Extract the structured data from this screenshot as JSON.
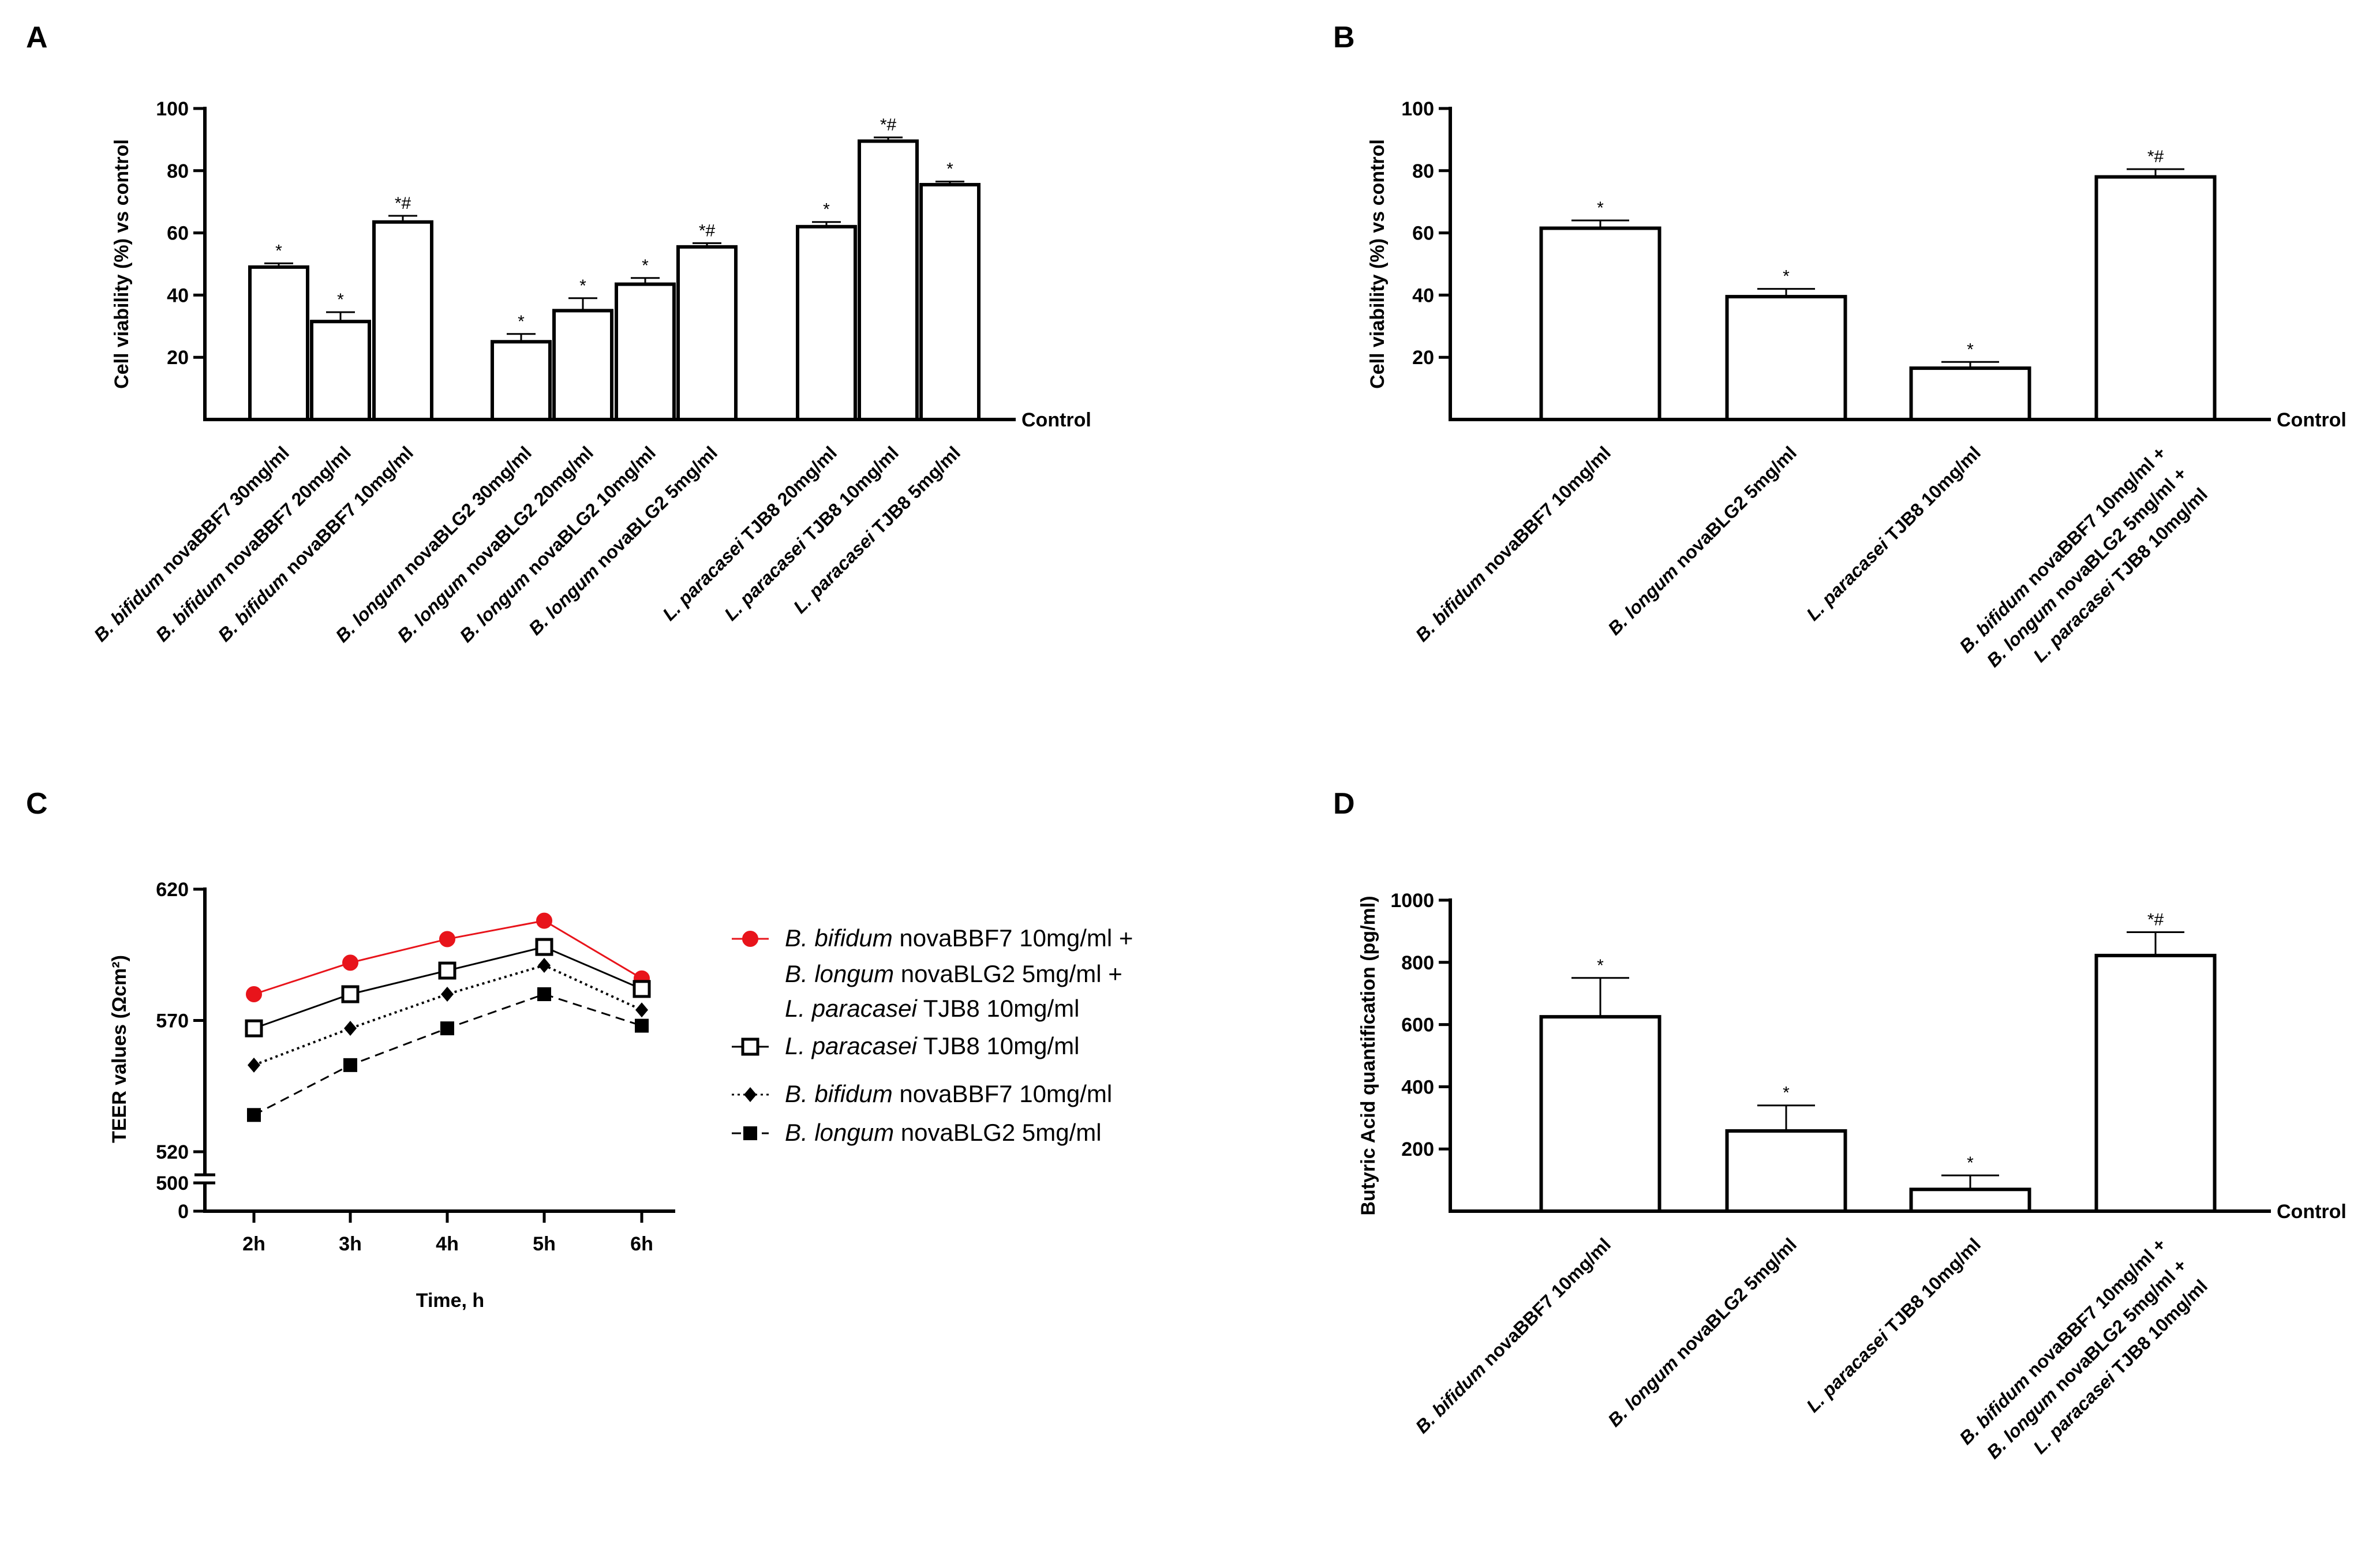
{
  "chart_data": [
    {
      "panel": "A",
      "type": "bar",
      "ylabel": "Cell viability (%) vs control",
      "baseline_label": "Control",
      "ylim": [
        0,
        100
      ],
      "yticks": [
        "20",
        "40",
        "60",
        "80",
        "100"
      ],
      "categories": [
        {
          "italic": "B. bifidum",
          "rest": " novaBBF7 30mg/ml"
        },
        {
          "italic": "B. bifidum",
          "rest": " novaBBF7 20mg/ml"
        },
        {
          "italic": "B. bifidum",
          "rest": " novaBBF7 10mg/ml"
        },
        {
          "italic": "B. longum",
          "rest": " novaBLG2 30mg/ml"
        },
        {
          "italic": "B. longum",
          "rest": " novaBLG2 20mg/ml"
        },
        {
          "italic": "B. longum",
          "rest": " novaBLG2 10mg/ml"
        },
        {
          "italic": "B. longum",
          "rest": " novaBLG2 5mg/ml"
        },
        {
          "italic": "L. paracasei",
          "rest": " TJB8 20mg/ml"
        },
        {
          "italic": "L. paracasei",
          "rest": " TJB8 10mg/ml"
        },
        {
          "italic": "L. paracasei",
          "rest": " TJB8 5mg/ml"
        }
      ],
      "values": [
        49,
        31.5,
        63.5,
        25,
        35,
        43.5,
        55.5,
        62,
        89.5,
        75.5
      ],
      "errors": [
        1.2,
        3,
        2,
        2.5,
        4,
        2,
        1.2,
        1.5,
        1.2,
        1
      ],
      "annotations": [
        "*",
        "*",
        "*#",
        "*",
        "*",
        "*",
        "*#",
        "*",
        "*#",
        "*"
      ]
    },
    {
      "panel": "B",
      "type": "bar",
      "ylabel": "Cell viability (%) vs control",
      "baseline_label": "Control",
      "ylim": [
        0,
        100
      ],
      "yticks": [
        "20",
        "40",
        "60",
        "80",
        "100"
      ],
      "categories": [
        [
          {
            "italic": "B. bifidum",
            "rest": " novaBBF7 10mg/ml"
          }
        ],
        [
          {
            "italic": "B. longum",
            "rest": " novaBLG2 5mg/ml"
          }
        ],
        [
          {
            "italic": "L. paracasei",
            "rest": " TJB8 10mg/ml"
          }
        ],
        [
          {
            "italic": "B. bifidum",
            "rest": " novaBBF7 10mg/ml +"
          },
          {
            "italic": "B. longum",
            "rest": " novaBLG2 5mg/ml +"
          },
          {
            "italic": "L. paracasei",
            "rest": " TJB8 10mg/ml"
          }
        ]
      ],
      "values": [
        61.5,
        39.5,
        16.5,
        78
      ],
      "errors": [
        2.5,
        2.5,
        2,
        2.5
      ],
      "annotations": [
        "*",
        "*",
        "*",
        "*#"
      ]
    },
    {
      "panel": "C",
      "type": "line",
      "xlabel": "Time, h",
      "ylabel": "TEER values (Ωcm²)",
      "x": [
        "2h",
        "3h",
        "4h",
        "5h",
        "6h"
      ],
      "yticks_upper": [
        "520",
        "570",
        "620"
      ],
      "yticks_lower": [
        "0",
        "500"
      ],
      "ylim_upper": [
        520,
        620
      ],
      "ylim_lower": [
        0,
        500
      ],
      "series": [
        {
          "name_lines": [
            {
              "italic": "B. bifidum",
              "rest": " novaBBF7 10mg/ml +"
            },
            {
              "italic": "B. longum",
              "rest": " novaBLG2 5mg/ml +"
            },
            {
              "italic": "L. paracasei",
              "rest": " TJB8 10mg/ml"
            }
          ],
          "values": [
            580,
            592,
            601,
            608,
            586
          ],
          "errors": [
            1,
            1,
            1,
            1,
            1.5
          ],
          "color": "#e8141b",
          "marker": "filled-circle",
          "line": "solid"
        },
        {
          "name_lines": [
            {
              "italic": "L. paracasei",
              "rest": " TJB8 10mg/ml"
            }
          ],
          "values": [
            567,
            580,
            589,
            598,
            582
          ],
          "errors": [
            1,
            1,
            1,
            1,
            1
          ],
          "color": "#000000",
          "marker": "open-square",
          "line": "solid"
        },
        {
          "name_lines": [
            {
              "italic": "B. bifidum",
              "rest": " novaBBF7 10mg/ml"
            }
          ],
          "values": [
            553,
            567,
            580,
            591,
            574
          ],
          "errors": [
            0.5,
            0.5,
            0.5,
            0.5,
            0.5
          ],
          "color": "#000000",
          "marker": "filled-diamond",
          "line": "dotted"
        },
        {
          "name_lines": [
            {
              "italic": "B. longum",
              "rest": " novaBLG2 5mg/ml"
            }
          ],
          "values": [
            534,
            553,
            567,
            580,
            568
          ],
          "errors": [
            2,
            1,
            1,
            1,
            1
          ],
          "color": "#000000",
          "marker": "filled-square",
          "line": "dashed"
        }
      ]
    },
    {
      "panel": "D",
      "type": "bar",
      "ylabel": "Butyric Acid quantification (pg/ml)",
      "baseline_label": "Control",
      "ylim": [
        0,
        1000
      ],
      "yticks": [
        "200",
        "400",
        "600",
        "800",
        "1000"
      ],
      "categories": [
        [
          {
            "italic": "B. bifidum",
            "rest": " novaBBF7 10mg/ml"
          }
        ],
        [
          {
            "italic": "B. longum",
            "rest": " novaBLG2 5mg/ml"
          }
        ],
        [
          {
            "italic": "L. paracasei",
            "rest": " TJB8 10mg/ml"
          }
        ],
        [
          {
            "italic": "B. bifidum",
            "rest": " novaBBF7 10mg/ml +"
          },
          {
            "italic": "B. longum",
            "rest": " novaBLG2 5mg/ml +"
          },
          {
            "italic": "L. paracasei",
            "rest": " TJB8 10mg/ml"
          }
        ]
      ],
      "values": [
        625,
        258,
        70,
        822
      ],
      "errors": [
        125,
        82,
        45,
        75
      ],
      "annotations": [
        "*",
        "*",
        "*",
        "*#"
      ]
    }
  ]
}
